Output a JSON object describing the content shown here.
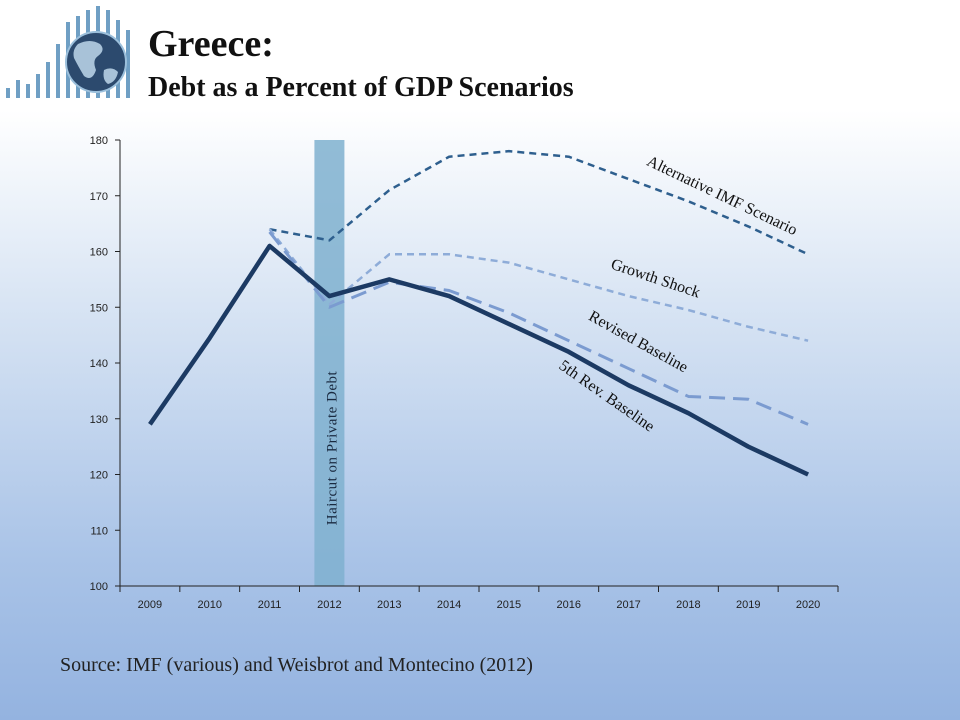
{
  "header": {
    "title": "Greece:",
    "subtitle": "Debt as a Percent of GDP Scenarios"
  },
  "logo": {
    "icon": "globe-bar-chart-icon"
  },
  "source": "Source: IMF (various) and Weisbrot and Montecino (2012)",
  "chart_data": {
    "type": "line",
    "x": [
      "2009",
      "2010",
      "2011",
      "2012",
      "2013",
      "2014",
      "2015",
      "2016",
      "2017",
      "2018",
      "2019",
      "2020"
    ],
    "ylim": [
      100,
      180
    ],
    "yticks": [
      100,
      110,
      120,
      130,
      140,
      150,
      160,
      170,
      180
    ],
    "grid": false,
    "shaded_region": {
      "x": "2012",
      "label": "Haircut on Private Debt",
      "color": "#7fb0cf"
    },
    "series": [
      {
        "name": "Alternative IMF Scenario",
        "color": "#2e5f8e",
        "style": "dashed",
        "values": [
          null,
          null,
          164,
          162,
          171,
          177,
          178,
          177,
          173,
          169,
          164.5,
          159.5
        ]
      },
      {
        "name": "Growth Shock",
        "color": "#8eacd8",
        "style": "dashed",
        "values": [
          null,
          null,
          164,
          150.5,
          159.5,
          159.5,
          158,
          155,
          152,
          149.5,
          146.5,
          144
        ]
      },
      {
        "name": "Revised Baseline",
        "color": "#7b9bd0",
        "style": "long-dashed",
        "values": [
          null,
          null,
          163.5,
          150,
          154.5,
          153,
          149,
          144,
          139,
          134,
          133.5,
          129
        ]
      },
      {
        "name": "5th Rev. Baseline",
        "color": "#1c3a63",
        "style": "solid",
        "values": [
          129,
          144.5,
          161,
          152,
          155,
          152,
          147,
          142,
          136,
          131,
          125,
          120
        ]
      }
    ]
  }
}
